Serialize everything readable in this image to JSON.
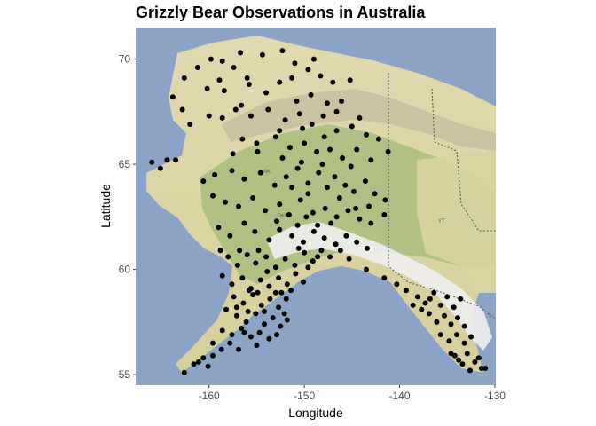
{
  "chart_data": {
    "type": "scatter",
    "title": "Grizzly Bear Observations in Australia",
    "xlabel": "Longitude",
    "ylabel": "Latitude",
    "xlim": [
      -167.7,
      -129.9
    ],
    "ylim": [
      54.5,
      71.5
    ],
    "x_ticks": [
      -160,
      -150,
      -140,
      -130
    ],
    "x_tick_labels": [
      "-160",
      "-150",
      "-140",
      "-130"
    ],
    "y_ticks": [
      55,
      60,
      65,
      70
    ],
    "y_tick_labels": [
      "55",
      "60",
      "65",
      "70"
    ],
    "grid": false,
    "legend": "none",
    "point_color": "#000000",
    "map_labels": {
      "ak": "AK",
      "yt": "YT",
      "denali": "Denali"
    },
    "colors": {
      "ocean": "#8ba4c6",
      "land_low": "#dcd49f",
      "land_forest": "#a7bc7d",
      "mountain": "#c9c0a6",
      "snow": "#f2f2f2",
      "border": "#555555"
    },
    "points": [
      [
        -159.8,
        70.0
      ],
      [
        -158.6,
        69.9
      ],
      [
        -157.4,
        69.6
      ],
      [
        -156.7,
        70.3
      ],
      [
        -156.0,
        69.1
      ],
      [
        -154.4,
        70.2
      ],
      [
        -152.3,
        70.4
      ],
      [
        -151.0,
        69.8
      ],
      [
        -149.6,
        69.5
      ],
      [
        -148.3,
        69.2
      ],
      [
        -147.0,
        68.9
      ],
      [
        -145.2,
        69.0
      ],
      [
        -162.6,
        69.1
      ],
      [
        -160.2,
        68.6
      ],
      [
        -158.4,
        68.5
      ],
      [
        -155.8,
        68.8
      ],
      [
        -154.0,
        68.4
      ],
      [
        -152.6,
        68.9
      ],
      [
        -150.8,
        68.0
      ],
      [
        -149.3,
        68.3
      ],
      [
        -147.6,
        67.9
      ],
      [
        -146.1,
        68.0
      ],
      [
        -163.8,
        68.2
      ],
      [
        -162.8,
        67.6
      ],
      [
        -160.0,
        67.3
      ],
      [
        -158.6,
        67.2
      ],
      [
        -157.2,
        67.6
      ],
      [
        -155.6,
        67.3
      ],
      [
        -153.8,
        67.6
      ],
      [
        -152.0,
        67.1
      ],
      [
        -150.5,
        67.4
      ],
      [
        -149.2,
        66.9
      ],
      [
        -148.0,
        67.3
      ],
      [
        -146.6,
        66.6
      ],
      [
        -145.0,
        66.8
      ],
      [
        -143.5,
        66.4
      ],
      [
        -142.2,
        66.2
      ],
      [
        -141.2,
        65.6
      ],
      [
        -162.0,
        66.9
      ],
      [
        -156.5,
        66.2
      ],
      [
        -155.0,
        66.0
      ],
      [
        -153.0,
        66.3
      ],
      [
        -151.5,
        65.8
      ],
      [
        -150.0,
        66.0
      ],
      [
        -148.7,
        65.6
      ],
      [
        -147.3,
        65.7
      ],
      [
        -146.0,
        65.3
      ],
      [
        -144.5,
        65.7
      ],
      [
        -143.0,
        65.2
      ],
      [
        -166.0,
        65.1
      ],
      [
        -165.1,
        64.8
      ],
      [
        -164.4,
        65.2
      ],
      [
        -163.5,
        65.2
      ],
      [
        -160.6,
        64.2
      ],
      [
        -159.4,
        64.5
      ],
      [
        -157.6,
        64.7
      ],
      [
        -156.3,
        64.3
      ],
      [
        -154.6,
        64.6
      ],
      [
        -153.1,
        64.0
      ],
      [
        -151.9,
        64.4
      ],
      [
        -150.7,
        64.8
      ],
      [
        -149.6,
        64.1
      ],
      [
        -148.5,
        64.6
      ],
      [
        -147.6,
        63.9
      ],
      [
        -146.8,
        64.4
      ],
      [
        -145.7,
        64.0
      ],
      [
        -144.8,
        63.7
      ],
      [
        -143.6,
        64.2
      ],
      [
        -142.6,
        63.6
      ],
      [
        -141.5,
        63.3
      ],
      [
        -159.6,
        63.5
      ],
      [
        -158.3,
        63.2
      ],
      [
        -156.9,
        63.0
      ],
      [
        -155.4,
        63.4
      ],
      [
        -154.1,
        62.8
      ],
      [
        -152.6,
        63.1
      ],
      [
        -151.6,
        62.6
      ],
      [
        -150.4,
        63.3
      ],
      [
        -149.1,
        62.7
      ],
      [
        -147.8,
        62.9
      ],
      [
        -146.6,
        62.5
      ],
      [
        -145.4,
        62.8
      ],
      [
        -144.2,
        62.4
      ],
      [
        -143.0,
        62.2
      ],
      [
        -141.6,
        62.6
      ],
      [
        -159.0,
        62.0
      ],
      [
        -157.8,
        61.6
      ],
      [
        -156.3,
        62.2
      ],
      [
        -155.2,
        61.8
      ],
      [
        -153.7,
        61.4
      ],
      [
        -152.6,
        61.9
      ],
      [
        -151.3,
        61.6
      ],
      [
        -150.1,
        61.3
      ],
      [
        -149.0,
        61.8
      ],
      [
        -147.9,
        61.5
      ],
      [
        -146.7,
        61.2
      ],
      [
        -145.6,
        61.6
      ],
      [
        -144.5,
        61.3
      ],
      [
        -143.4,
        61.0
      ],
      [
        -158.0,
        60.6
      ],
      [
        -157.0,
        60.2
      ],
      [
        -156.0,
        60.7
      ],
      [
        -155.1,
        60.3
      ],
      [
        -154.0,
        60.6
      ],
      [
        -153.0,
        60.1
      ],
      [
        -152.0,
        60.5
      ],
      [
        -151.0,
        60.2
      ],
      [
        -150.0,
        60.8
      ],
      [
        -149.1,
        60.4
      ],
      [
        -148.2,
        60.9
      ],
      [
        -147.3,
        60.6
      ],
      [
        -146.2,
        60.9
      ],
      [
        -145.3,
        60.5
      ],
      [
        -158.6,
        59.7
      ],
      [
        -157.6,
        59.3
      ],
      [
        -156.5,
        59.6
      ],
      [
        -155.6,
        59.1
      ],
      [
        -154.6,
        59.5
      ],
      [
        -153.7,
        59.2
      ],
      [
        -152.7,
        59.6
      ],
      [
        -151.8,
        59.3
      ],
      [
        -150.9,
        59.8
      ],
      [
        -150.1,
        59.4
      ],
      [
        -157.4,
        58.7
      ],
      [
        -156.4,
        58.4
      ],
      [
        -155.4,
        58.8
      ],
      [
        -154.5,
        58.3
      ],
      [
        -153.6,
        58.6
      ],
      [
        -152.7,
        58.2
      ],
      [
        -151.9,
        58.6
      ],
      [
        -158.2,
        58.1
      ],
      [
        -157.1,
        57.8
      ],
      [
        -156.1,
        57.5
      ],
      [
        -155.1,
        57.9
      ],
      [
        -154.2,
        57.4
      ],
      [
        -153.3,
        57.7
      ],
      [
        -152.5,
        57.3
      ],
      [
        -151.8,
        57.6
      ],
      [
        -158.6,
        57.1
      ],
      [
        -157.6,
        56.9
      ],
      [
        -156.6,
        57.2
      ],
      [
        -155.6,
        56.8
      ],
      [
        -154.7,
        57.0
      ],
      [
        -153.7,
        56.7
      ],
      [
        -152.9,
        56.9
      ],
      [
        -159.6,
        56.5
      ],
      [
        -158.7,
        56.2
      ],
      [
        -157.8,
        56.5
      ],
      [
        -156.9,
        56.2
      ],
      [
        -160.6,
        55.8
      ],
      [
        -161.6,
        55.5
      ],
      [
        -162.6,
        55.1
      ],
      [
        -159.6,
        55.9
      ],
      [
        -160.1,
        55.4
      ],
      [
        -161.1,
        55.6
      ],
      [
        -157.1,
        58.2
      ],
      [
        -155.8,
        59.0
      ],
      [
        -154.9,
        58.9
      ],
      [
        -153.9,
        59.9
      ],
      [
        -152.4,
        58.9
      ],
      [
        -151.4,
        59.0
      ],
      [
        -143.5,
        60.0
      ],
      [
        -141.6,
        59.6
      ],
      [
        -140.3,
        59.3
      ],
      [
        -139.3,
        59.0
      ],
      [
        -138.1,
        58.7
      ],
      [
        -137.3,
        58.4
      ],
      [
        -136.4,
        58.9
      ],
      [
        -135.7,
        58.3
      ],
      [
        -135.0,
        58.7
      ],
      [
        -134.3,
        58.2
      ],
      [
        -133.6,
        58.6
      ],
      [
        -136.9,
        57.9
      ],
      [
        -136.1,
        57.5
      ],
      [
        -135.3,
        57.8
      ],
      [
        -134.6,
        57.4
      ],
      [
        -133.9,
        57.7
      ],
      [
        -133.2,
        57.3
      ],
      [
        -135.7,
        56.9
      ],
      [
        -134.8,
        56.6
      ],
      [
        -134.0,
        56.9
      ],
      [
        -133.2,
        56.5
      ],
      [
        -132.5,
        56.8
      ],
      [
        -134.6,
        56.0
      ],
      [
        -133.8,
        55.7
      ],
      [
        -132.9,
        56.0
      ],
      [
        -132.1,
        55.6
      ],
      [
        -131.4,
        55.3
      ],
      [
        -131.0,
        55.3
      ],
      [
        -137.7,
        58.1
      ],
      [
        -136.8,
        58.6
      ],
      [
        -138.6,
        58.3
      ],
      [
        -131.7,
        55.8
      ],
      [
        -132.6,
        55.2
      ],
      [
        -133.4,
        55.5
      ],
      [
        -134.2,
        55.9
      ],
      [
        -150.3,
        65.1
      ],
      [
        -148.1,
        65.0
      ],
      [
        -152.3,
        65.3
      ],
      [
        -154.9,
        65.6
      ],
      [
        -157.5,
        65.5
      ],
      [
        -145.1,
        64.9
      ],
      [
        -143.2,
        63.0
      ],
      [
        -149.6,
        63.6
      ],
      [
        -151.3,
        63.9
      ],
      [
        -146.3,
        63.4
      ],
      [
        -144.6,
        62.9
      ],
      [
        -147.2,
        62.2
      ],
      [
        -150.7,
        62.1
      ],
      [
        -152.9,
        62.3
      ],
      [
        -149.8,
        62.5
      ],
      [
        -148.6,
        62.1
      ],
      [
        -154.8,
        60.9
      ],
      [
        -156.8,
        60.9
      ],
      [
        -158.8,
        60.9
      ],
      [
        -150.6,
        61.0
      ],
      [
        -149.6,
        60.1
      ],
      [
        -148.6,
        60.6
      ],
      [
        -155.9,
        58.0
      ],
      [
        -154.2,
        58.0
      ],
      [
        -152.1,
        57.9
      ],
      [
        -153.0,
        58.9
      ],
      [
        -156.3,
        57.0
      ],
      [
        -155.0,
        56.4
      ],
      [
        -150.2,
        66.7
      ],
      [
        -147.9,
        66.3
      ],
      [
        -152.6,
        66.6
      ],
      [
        -151.3,
        69.1
      ],
      [
        -149.0,
        70.0
      ],
      [
        -146.6,
        67.5
      ],
      [
        -144.2,
        67.2
      ],
      [
        -156.6,
        67.8
      ],
      [
        -158.9,
        69.0
      ],
      [
        -161.2,
        69.6
      ]
    ]
  }
}
